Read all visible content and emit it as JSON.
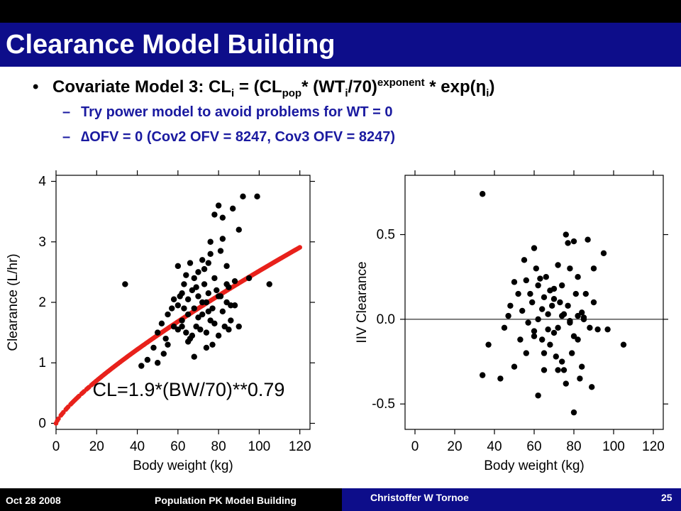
{
  "slide": {
    "title": "Clearance Model Building",
    "bullet": {
      "prefix": "Covariate Model 3: CL",
      "sub_i": "i",
      "eq1": " = (CL",
      "sub_pop": "pop",
      "eq2": "* (WT",
      "sub_i2": "i",
      "eq3": "/70)",
      "sup_exp": "exponent",
      "eq4": " * exp(",
      "eta": "η",
      "sub_i3": "i",
      "eq5": ")"
    },
    "subbullets": [
      {
        "dash": "–",
        "text": "Try power model to avoid problems for WT = 0"
      },
      {
        "dash": "–",
        "text": "∆OFV = 0 (Cov2 OFV = 8247, Cov3 OFV = 8247)"
      }
    ]
  },
  "footer": {
    "date": "Oct 28 2008",
    "course": "Population PK Model Building",
    "author": "Christoffer W Tornoe",
    "page": "25"
  },
  "chart_data": [
    {
      "type": "scatter",
      "xlabel": "Body weight (kg)",
      "ylabel": "Clearance (L/hr)",
      "xlim": [
        0,
        125
      ],
      "ylim": [
        -0.1,
        4.1
      ],
      "xticks": [
        0,
        20,
        40,
        60,
        80,
        100,
        120
      ],
      "yticks": [
        0,
        1,
        2,
        3,
        4
      ],
      "annotation": "CL=1.9*(BW/70)**0.79",
      "fit": {
        "coef": 1.9,
        "ref": 70,
        "exponent": 0.79,
        "x_from": 0,
        "x_to": 120,
        "color": "#e8211b"
      },
      "series": [
        {
          "kind": "points",
          "x": [
            34,
            42,
            45,
            48,
            50,
            52,
            54,
            55,
            57,
            58,
            60,
            60,
            61,
            62,
            62,
            63,
            64,
            65,
            65,
            66,
            67,
            68,
            68,
            69,
            70,
            70,
            71,
            72,
            72,
            73,
            74,
            74,
            75,
            75,
            76,
            76,
            77,
            78,
            78,
            79,
            80,
            80,
            81,
            81,
            82,
            82,
            83,
            84,
            84,
            85,
            86,
            87,
            88,
            90,
            90,
            92,
            95,
            99,
            105,
            50,
            55,
            60,
            63,
            65,
            67,
            70,
            72,
            74,
            76,
            78,
            80,
            82,
            84,
            86,
            88,
            62,
            58,
            69,
            75,
            68,
            64,
            85,
            77,
            73,
            66,
            53
          ],
          "y": [
            2.3,
            0.95,
            1.05,
            1.25,
            1.5,
            1.65,
            1.4,
            1.8,
            1.9,
            1.6,
            1.95,
            2.6,
            2.1,
            1.6,
            1.7,
            2.3,
            1.5,
            2.05,
            1.8,
            1.4,
            2.2,
            1.9,
            2.4,
            1.6,
            2.5,
            2.1,
            1.55,
            2.7,
            1.8,
            2.3,
            2.0,
            1.5,
            2.15,
            2.65,
            3.0,
            1.7,
            1.9,
            2.4,
            3.45,
            2.2,
            3.6,
            1.45,
            2.85,
            2.1,
            3.4,
            1.85,
            1.6,
            2.3,
            2.0,
            2.25,
            1.7,
            3.55,
            2.35,
            3.2,
            1.6,
            3.75,
            2.4,
            3.75,
            2.3,
            1.0,
            1.3,
            1.55,
            1.9,
            1.35,
            1.45,
            1.75,
            2.0,
            1.25,
            2.8,
            1.65,
            2.1,
            3.05,
            2.6,
            1.95,
            1.95,
            2.15,
            2.05,
            2.25,
            1.85,
            1.1,
            2.45,
            1.55,
            1.3,
            2.55,
            2.65,
            1.15
          ],
          "color": "#000000"
        }
      ]
    },
    {
      "type": "scatter",
      "xlabel": "Body weight (kg)",
      "ylabel": "IIV Clearance",
      "xlim": [
        -5,
        125
      ],
      "ylim": [
        -0.65,
        0.85
      ],
      "xticks": [
        0,
        20,
        40,
        60,
        80,
        100,
        120
      ],
      "yticks": [
        -0.5,
        0.0,
        0.5
      ],
      "ytick_labels": [
        "-0.5",
        "0.0",
        "0.5"
      ],
      "hline": 0.0,
      "series": [
        {
          "kind": "points",
          "x": [
            34,
            34,
            37,
            43,
            45,
            47,
            48,
            50,
            50,
            52,
            53,
            54,
            55,
            56,
            56,
            57,
            58,
            59,
            60,
            60,
            61,
            62,
            62,
            63,
            64,
            64,
            65,
            65,
            66,
            67,
            68,
            68,
            69,
            70,
            70,
            71,
            72,
            72,
            73,
            74,
            74,
            75,
            75,
            76,
            76,
            77,
            77,
            78,
            78,
            79,
            80,
            80,
            81,
            82,
            82,
            83,
            84,
            84,
            85,
            86,
            87,
            88,
            89,
            90,
            90,
            92,
            95,
            97,
            105,
            60,
            62,
            65,
            67,
            70,
            72,
            74,
            78,
            80,
            82,
            85
          ],
          "y": [
            0.74,
            -0.33,
            -0.15,
            -0.35,
            -0.05,
            0.02,
            0.08,
            -0.28,
            0.22,
            0.15,
            -0.12,
            0.05,
            0.35,
            -0.2,
            0.23,
            -0.02,
            0.15,
            0.1,
            0.42,
            -0.07,
            0.3,
            0.2,
            -0.45,
            0.24,
            -0.12,
            0.06,
            0.13,
            -0.3,
            0.25,
            0.03,
            -0.15,
            0.17,
            0.08,
            -0.08,
            0.12,
            -0.22,
            0.32,
            -0.05,
            0.1,
            -0.25,
            0.2,
            0.03,
            -0.3,
            0.5,
            -0.38,
            0.45,
            0.08,
            -0.01,
            0.3,
            -0.2,
            -0.55,
            0.46,
            0.15,
            -0.12,
            0.25,
            -0.35,
            0.04,
            -0.28,
            0.01,
            0.15,
            0.47,
            -0.05,
            -0.4,
            0.3,
            0.1,
            -0.06,
            0.39,
            -0.06,
            -0.15,
            -0.1,
            0.0,
            -0.2,
            -0.06,
            0.18,
            -0.3,
            0.02,
            -0.02,
            -0.1,
            0.02,
            0.0
          ],
          "color": "#000000"
        }
      ]
    }
  ]
}
